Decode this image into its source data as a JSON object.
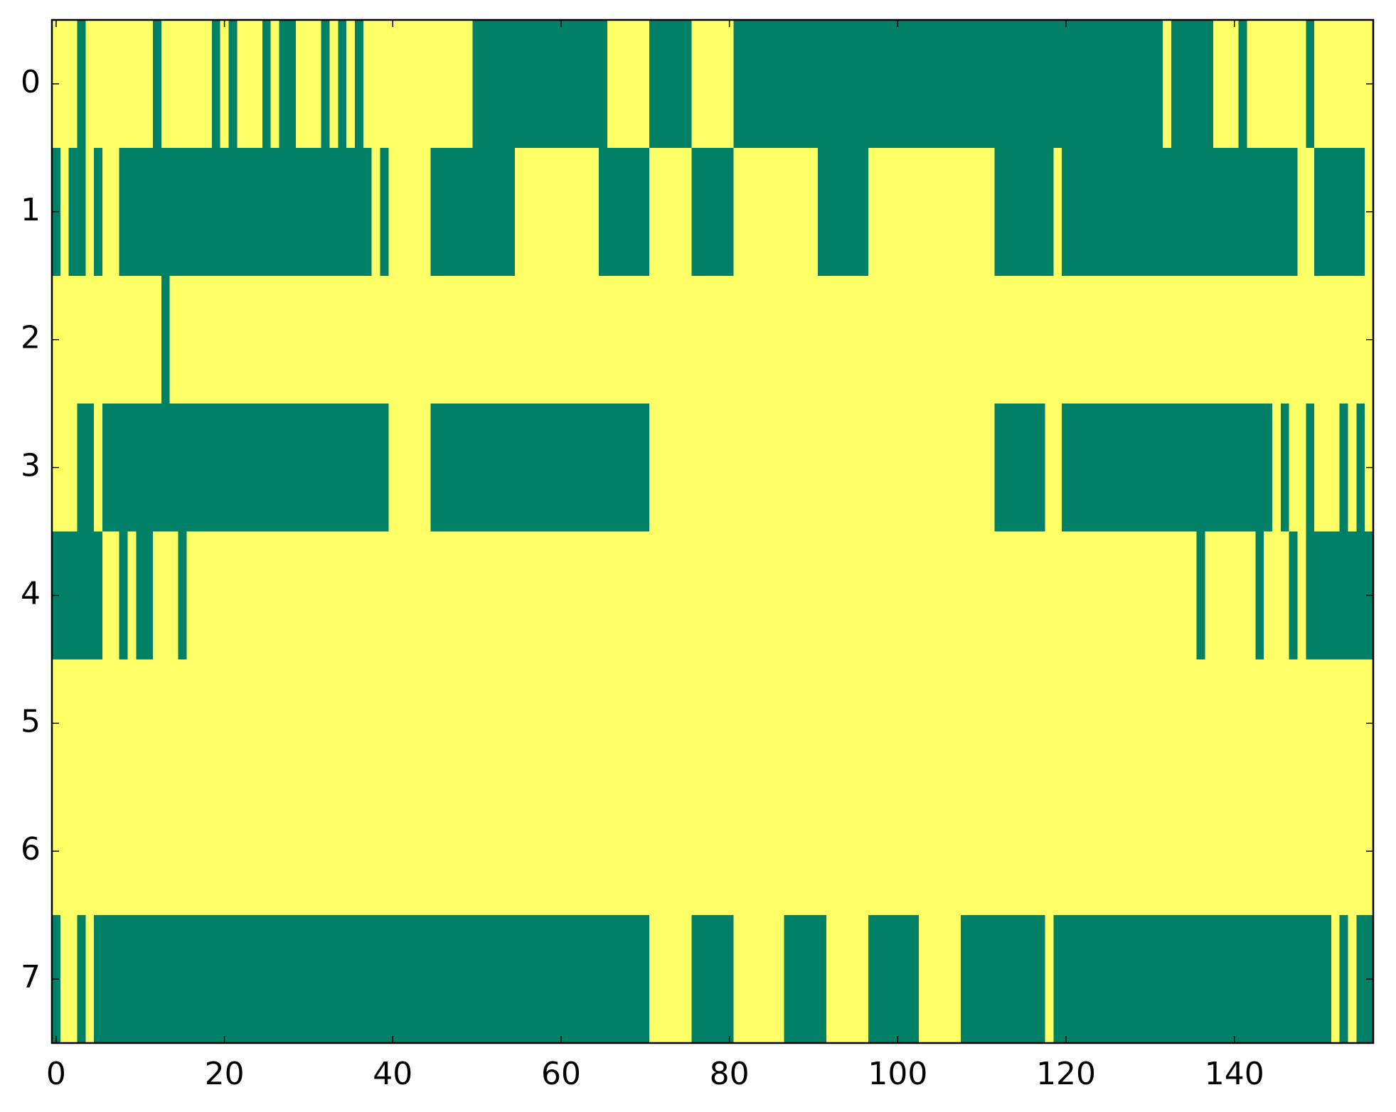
{
  "chart_data": {
    "type": "heatmap",
    "colors": [
      "#008066",
      "#ffff66"
    ],
    "xlim": [
      -0.5,
      156.5
    ],
    "ylim": [
      7.5,
      -0.5
    ],
    "xticks": [
      0,
      20,
      40,
      60,
      80,
      100,
      120,
      140
    ],
    "yticks": [
      0,
      1,
      2,
      3,
      4,
      5,
      6,
      7
    ],
    "values": [
      [
        1,
        1,
        1,
        0,
        1,
        1,
        1,
        1,
        1,
        1,
        1,
        1,
        0,
        1,
        1,
        1,
        1,
        1,
        1,
        0,
        1,
        0,
        1,
        1,
        1,
        0,
        1,
        0,
        0,
        1,
        1,
        1,
        0,
        1,
        0,
        1,
        0,
        1,
        1,
        1,
        1,
        1,
        1,
        1,
        1,
        1,
        1,
        1,
        1,
        1,
        0,
        0,
        0,
        0,
        0,
        0,
        0,
        0,
        0,
        0,
        0,
        0,
        0,
        0,
        0,
        0,
        1,
        1,
        1,
        1,
        1,
        0,
        0,
        0,
        0,
        0,
        1,
        1,
        1,
        1,
        1,
        0,
        0,
        0,
        0,
        0,
        0,
        0,
        0,
        0,
        0,
        0,
        0,
        0,
        0,
        0,
        0,
        0,
        0,
        0,
        0,
        0,
        0,
        0,
        0,
        0,
        0,
        0,
        0,
        0,
        0,
        0,
        0,
        0,
        0,
        0,
        0,
        0,
        0,
        0,
        0,
        0,
        0,
        0,
        0,
        0,
        0,
        0,
        0,
        0,
        0,
        0,
        1,
        0,
        0,
        0,
        0,
        0,
        1,
        1,
        1,
        0,
        1,
        1,
        1,
        1,
        1,
        1,
        1,
        0,
        1,
        1,
        1,
        1,
        1,
        1,
        1
      ],
      [
        0,
        1,
        0,
        0,
        1,
        0,
        1,
        1,
        0,
        0,
        0,
        0,
        0,
        0,
        0,
        0,
        0,
        0,
        0,
        0,
        0,
        0,
        0,
        0,
        0,
        0,
        0,
        0,
        0,
        0,
        0,
        0,
        0,
        0,
        0,
        0,
        0,
        0,
        1,
        0,
        1,
        1,
        1,
        1,
        1,
        0,
        0,
        0,
        0,
        0,
        0,
        0,
        0,
        0,
        0,
        1,
        1,
        1,
        1,
        1,
        1,
        1,
        1,
        1,
        1,
        0,
        0,
        0,
        0,
        0,
        0,
        1,
        1,
        1,
        1,
        1,
        0,
        0,
        0,
        0,
        0,
        1,
        1,
        1,
        1,
        1,
        1,
        1,
        1,
        1,
        1,
        0,
        0,
        0,
        0,
        0,
        0,
        1,
        1,
        1,
        1,
        1,
        1,
        1,
        1,
        1,
        1,
        1,
        1,
        1,
        1,
        1,
        0,
        0,
        0,
        0,
        0,
        0,
        0,
        1,
        0,
        0,
        0,
        0,
        0,
        0,
        0,
        0,
        0,
        0,
        0,
        0,
        0,
        0,
        0,
        0,
        0,
        0,
        0,
        0,
        0,
        0,
        0,
        0,
        0,
        0,
        0,
        0,
        1,
        1,
        0,
        0,
        0,
        0,
        0,
        0,
        1
      ],
      [
        1,
        1,
        1,
        1,
        1,
        1,
        1,
        1,
        1,
        1,
        1,
        1,
        1,
        0,
        1,
        1,
        1,
        1,
        1,
        1,
        1,
        1,
        1,
        1,
        1,
        1,
        1,
        1,
        1,
        1,
        1,
        1,
        1,
        1,
        1,
        1,
        1,
        1,
        1,
        1,
        1,
        1,
        1,
        1,
        1,
        1,
        1,
        1,
        1,
        1,
        1,
        1,
        1,
        1,
        1,
        1,
        1,
        1,
        1,
        1,
        1,
        1,
        1,
        1,
        1,
        1,
        1,
        1,
        1,
        1,
        1,
        1,
        1,
        1,
        1,
        1,
        1,
        1,
        1,
        1,
        1,
        1,
        1,
        1,
        1,
        1,
        1,
        1,
        1,
        1,
        1,
        1,
        1,
        1,
        1,
        1,
        1,
        1,
        1,
        1,
        1,
        1,
        1,
        1,
        1,
        1,
        1,
        1,
        1,
        1,
        1,
        1,
        1,
        1,
        1,
        1,
        1,
        1,
        1,
        1,
        1,
        1,
        1,
        1,
        1,
        1,
        1,
        1,
        1,
        1,
        1,
        1,
        1,
        1,
        1,
        1,
        1,
        1,
        1,
        1,
        1,
        1,
        1,
        1,
        1,
        1,
        1,
        1,
        1,
        1,
        1,
        1,
        1,
        1,
        1,
        1,
        1
      ],
      [
        1,
        1,
        1,
        0,
        0,
        1,
        0,
        0,
        0,
        0,
        0,
        0,
        0,
        0,
        0,
        0,
        0,
        0,
        0,
        0,
        0,
        0,
        0,
        0,
        0,
        0,
        0,
        0,
        0,
        0,
        0,
        0,
        0,
        0,
        0,
        0,
        0,
        0,
        0,
        0,
        1,
        1,
        1,
        1,
        1,
        0,
        0,
        0,
        0,
        0,
        0,
        0,
        0,
        0,
        0,
        0,
        0,
        0,
        0,
        0,
        0,
        0,
        0,
        0,
        0,
        0,
        0,
        0,
        0,
        0,
        0,
        1,
        1,
        1,
        1,
        1,
        1,
        1,
        1,
        1,
        1,
        1,
        1,
        1,
        1,
        1,
        1,
        1,
        1,
        1,
        1,
        1,
        1,
        1,
        1,
        1,
        1,
        1,
        1,
        1,
        1,
        1,
        1,
        1,
        1,
        1,
        1,
        1,
        1,
        1,
        1,
        1,
        0,
        0,
        0,
        0,
        0,
        0,
        1,
        1,
        0,
        0,
        0,
        0,
        0,
        0,
        0,
        0,
        0,
        0,
        0,
        0,
        0,
        0,
        0,
        0,
        0,
        0,
        0,
        0,
        0,
        0,
        0,
        0,
        0,
        1,
        0,
        1,
        1,
        0,
        1,
        1,
        1,
        0,
        1,
        0,
        1
      ],
      [
        0,
        0,
        0,
        0,
        0,
        0,
        1,
        1,
        0,
        1,
        0,
        0,
        1,
        1,
        1,
        0,
        1,
        1,
        1,
        1,
        1,
        1,
        1,
        1,
        1,
        1,
        1,
        1,
        1,
        1,
        1,
        1,
        1,
        1,
        1,
        1,
        1,
        1,
        1,
        1,
        1,
        1,
        1,
        1,
        1,
        1,
        1,
        1,
        1,
        1,
        1,
        1,
        1,
        1,
        1,
        1,
        1,
        1,
        1,
        1,
        1,
        1,
        1,
        1,
        1,
        1,
        1,
        1,
        1,
        1,
        1,
        1,
        1,
        1,
        1,
        1,
        1,
        1,
        1,
        1,
        1,
        1,
        1,
        1,
        1,
        1,
        1,
        1,
        1,
        1,
        1,
        1,
        1,
        1,
        1,
        1,
        1,
        1,
        1,
        1,
        1,
        1,
        1,
        1,
        1,
        1,
        1,
        1,
        1,
        1,
        1,
        1,
        1,
        1,
        1,
        1,
        1,
        1,
        1,
        1,
        1,
        1,
        1,
        1,
        1,
        1,
        1,
        1,
        1,
        1,
        1,
        1,
        1,
        1,
        1,
        1,
        0,
        1,
        1,
        1,
        1,
        1,
        1,
        0,
        1,
        1,
        1,
        0,
        1,
        0,
        0,
        0,
        0,
        0,
        0,
        0,
        0
      ],
      [
        1,
        1,
        1,
        1,
        1,
        1,
        1,
        1,
        1,
        1,
        1,
        1,
        1,
        1,
        1,
        1,
        1,
        1,
        1,
        1,
        1,
        1,
        1,
        1,
        1,
        1,
        1,
        1,
        1,
        1,
        1,
        1,
        1,
        1,
        1,
        1,
        1,
        1,
        1,
        1,
        1,
        1,
        1,
        1,
        1,
        1,
        1,
        1,
        1,
        1,
        1,
        1,
        1,
        1,
        1,
        1,
        1,
        1,
        1,
        1,
        1,
        1,
        1,
        1,
        1,
        1,
        1,
        1,
        1,
        1,
        1,
        1,
        1,
        1,
        1,
        1,
        1,
        1,
        1,
        1,
        1,
        1,
        1,
        1,
        1,
        1,
        1,
        1,
        1,
        1,
        1,
        1,
        1,
        1,
        1,
        1,
        1,
        1,
        1,
        1,
        1,
        1,
        1,
        1,
        1,
        1,
        1,
        1,
        1,
        1,
        1,
        1,
        1,
        1,
        1,
        1,
        1,
        1,
        1,
        1,
        1,
        1,
        1,
        1,
        1,
        1,
        1,
        1,
        1,
        1,
        1,
        1,
        1,
        1,
        1,
        1,
        1,
        1,
        1,
        1,
        1,
        1,
        1,
        1,
        1,
        1,
        1,
        1,
        1,
        1,
        1,
        1,
        1,
        1,
        1,
        1,
        1
      ],
      [
        1,
        1,
        1,
        1,
        1,
        1,
        1,
        1,
        1,
        1,
        1,
        1,
        1,
        1,
        1,
        1,
        1,
        1,
        1,
        1,
        1,
        1,
        1,
        1,
        1,
        1,
        1,
        1,
        1,
        1,
        1,
        1,
        1,
        1,
        1,
        1,
        1,
        1,
        1,
        1,
        1,
        1,
        1,
        1,
        1,
        1,
        1,
        1,
        1,
        1,
        1,
        1,
        1,
        1,
        1,
        1,
        1,
        1,
        1,
        1,
        1,
        1,
        1,
        1,
        1,
        1,
        1,
        1,
        1,
        1,
        1,
        1,
        1,
        1,
        1,
        1,
        1,
        1,
        1,
        1,
        1,
        1,
        1,
        1,
        1,
        1,
        1,
        1,
        1,
        1,
        1,
        1,
        1,
        1,
        1,
        1,
        1,
        1,
        1,
        1,
        1,
        1,
        1,
        1,
        1,
        1,
        1,
        1,
        1,
        1,
        1,
        1,
        1,
        1,
        1,
        1,
        1,
        1,
        1,
        1,
        1,
        1,
        1,
        1,
        1,
        1,
        1,
        1,
        1,
        1,
        1,
        1,
        1,
        1,
        1,
        1,
        1,
        1,
        1,
        1,
        1,
        1,
        1,
        1,
        1,
        1,
        1,
        1,
        1,
        1,
        1,
        1,
        1,
        1,
        1,
        1,
        1
      ],
      [
        0,
        1,
        1,
        0,
        1,
        0,
        0,
        0,
        0,
        0,
        0,
        0,
        0,
        0,
        0,
        0,
        0,
        0,
        0,
        0,
        0,
        0,
        0,
        0,
        0,
        0,
        0,
        0,
        0,
        0,
        0,
        0,
        0,
        0,
        0,
        0,
        0,
        0,
        0,
        0,
        0,
        0,
        0,
        0,
        0,
        0,
        0,
        0,
        0,
        0,
        0,
        0,
        0,
        0,
        0,
        0,
        0,
        0,
        0,
        0,
        0,
        0,
        0,
        0,
        0,
        0,
        0,
        0,
        0,
        0,
        0,
        1,
        1,
        1,
        1,
        1,
        0,
        0,
        0,
        0,
        0,
        1,
        1,
        1,
        1,
        1,
        1,
        0,
        0,
        0,
        0,
        0,
        1,
        1,
        1,
        1,
        1,
        0,
        0,
        0,
        0,
        0,
        0,
        1,
        1,
        1,
        1,
        1,
        0,
        0,
        0,
        0,
        0,
        0,
        0,
        0,
        0,
        0,
        1,
        0,
        0,
        0,
        0,
        0,
        0,
        0,
        0,
        0,
        0,
        0,
        0,
        0,
        0,
        0,
        0,
        0,
        0,
        0,
        0,
        0,
        0,
        0,
        0,
        0,
        0,
        0,
        0,
        0,
        0,
        0,
        0,
        0,
        1,
        0,
        1,
        0,
        0
      ]
    ]
  }
}
